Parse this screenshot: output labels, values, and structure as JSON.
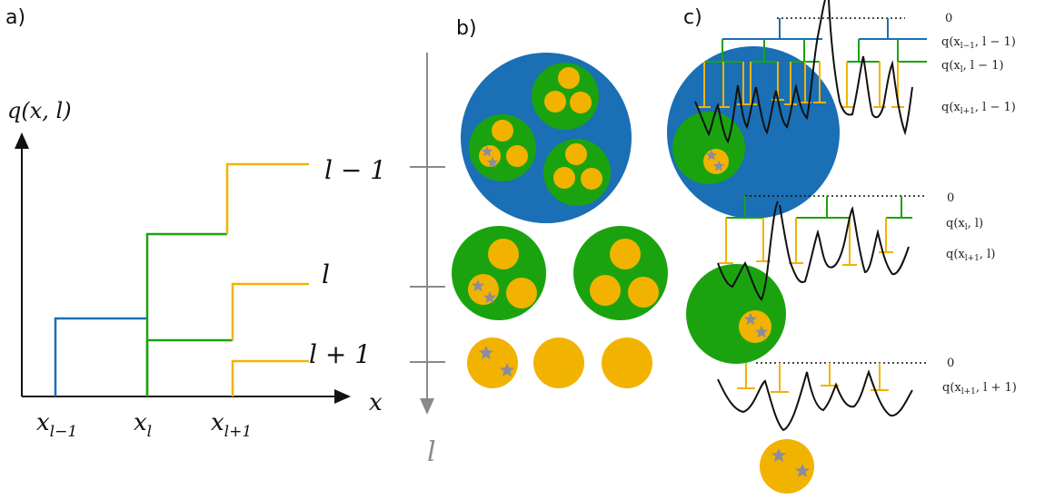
{
  "colors": {
    "blue": "#1a6fb5",
    "green": "#1aa30f",
    "yellow": "#f2b300",
    "black": "#111111",
    "gray": "#8a8a8a",
    "star": "#8c8c9c"
  },
  "panel_a": {
    "label": "a)",
    "y_axis_label": "q(x, l)",
    "x_axis_label": "x",
    "x_ticks": [
      "x",
      "x",
      "x"
    ],
    "x_subs": [
      "l−1",
      "l",
      "l+1"
    ],
    "level_labels": [
      "l − 1",
      "l",
      "l + 1"
    ]
  },
  "panel_b": {
    "label": "b)",
    "axis_label": "l"
  },
  "panel_c": {
    "label": "c)",
    "groups": [
      {
        "zero": "0",
        "levels": [
          "q(x",
          "q(x",
          "q(x"
        ],
        "subs": [
          "l−1",
          "l",
          "l+1"
        ],
        "args": [
          ", l − 1)",
          ", l − 1)",
          ", l − 1)"
        ]
      },
      {
        "zero": "0",
        "levels": [
          "q(x",
          "q(x"
        ],
        "subs": [
          "l",
          "l+1"
        ],
        "args": [
          ", l)",
          ", l)"
        ]
      },
      {
        "zero": "0",
        "levels": [
          "q(x"
        ],
        "subs": [
          "l+1"
        ],
        "args": [
          ", l + 1)"
        ]
      }
    ]
  }
}
